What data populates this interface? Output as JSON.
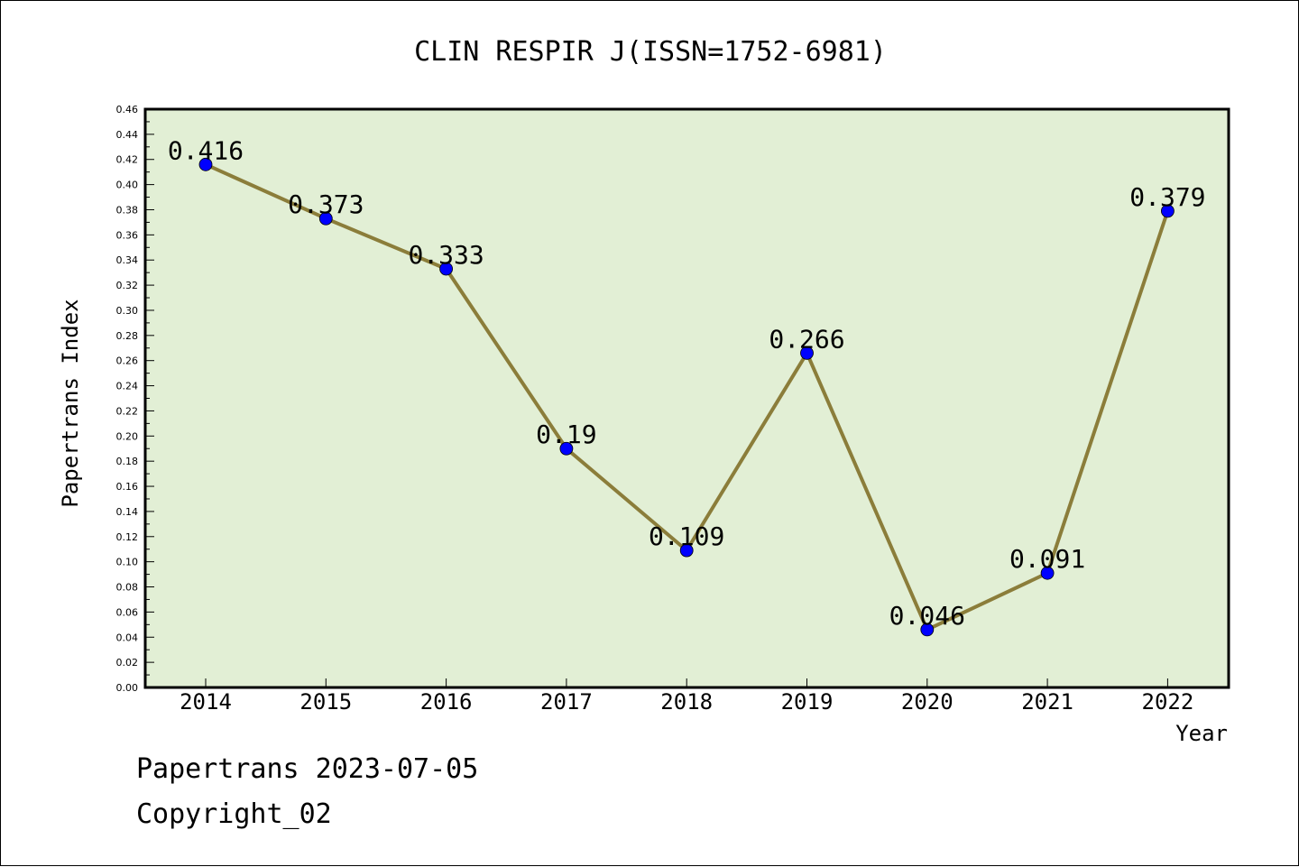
{
  "chart_data": {
    "type": "line",
    "title": "CLIN RESPIR J(ISSN=1752-6981)",
    "xlabel": "Year",
    "ylabel": "Papertrans Index",
    "categories": [
      "2014",
      "2015",
      "2016",
      "2017",
      "2018",
      "2019",
      "2020",
      "2021",
      "2022"
    ],
    "values": [
      0.416,
      0.373,
      0.333,
      0.19,
      0.109,
      0.266,
      0.046,
      0.091,
      0.379
    ],
    "data_labels": [
      "0.416",
      "0.373",
      "0.333",
      "0.19",
      "0.109",
      "0.266",
      "0.046",
      "0.091",
      "0.379"
    ],
    "ylim": [
      0,
      0.46
    ],
    "ytick_step": 0.02,
    "yticks": [
      "0.00",
      "0.02",
      "0.04",
      "0.06",
      "0.08",
      "0.10",
      "0.12",
      "0.14",
      "0.16",
      "0.18",
      "0.20",
      "0.22",
      "0.24",
      "0.26",
      "0.28",
      "0.30",
      "0.32",
      "0.34",
      "0.36",
      "0.38",
      "0.40",
      "0.42",
      "0.44",
      "0.46"
    ],
    "grid": false,
    "colors": {
      "plot_background": "#e2efd5",
      "line": "#8b7d3a",
      "marker": "#0000ff"
    }
  },
  "footer": {
    "line1": "Papertrans 2023-07-05",
    "line2": "Copyright_02"
  }
}
